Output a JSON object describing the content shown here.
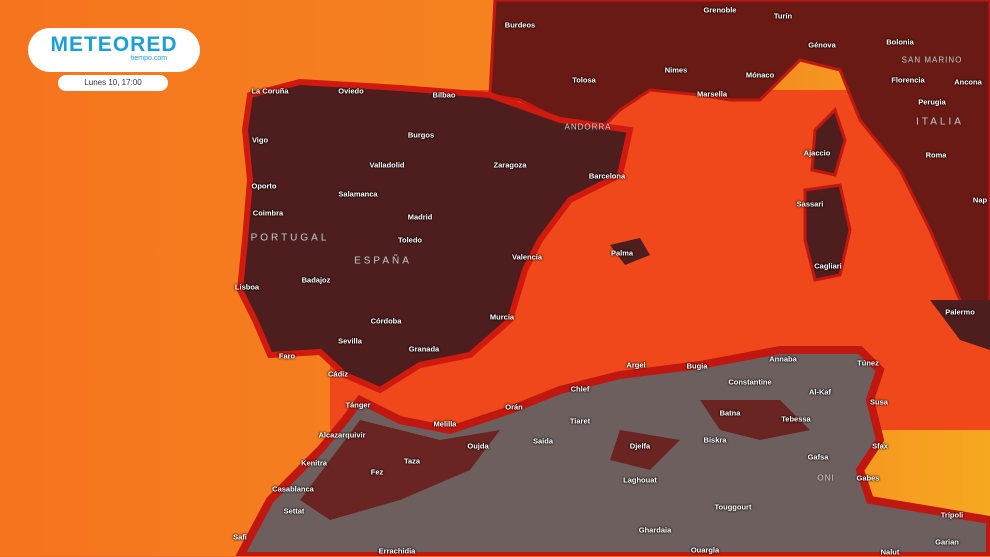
{
  "brand": {
    "name": "METEORED",
    "domain": "tiempo.com"
  },
  "timestamp": "Lunes 10, 17:00",
  "colors": {
    "ocean": "#f26a1c",
    "sea": "#f0461a",
    "land_hot": "#4e1e1e",
    "land_desert": "#6e5f5f",
    "coast_red": "#c01810"
  },
  "countries": [
    {
      "name": "PORTUGAL"
    },
    {
      "name": "ESPAÑA"
    },
    {
      "name": "ITALIA"
    },
    {
      "name": "SAN MARINO"
    },
    {
      "name": "ANDORRA"
    },
    {
      "name": "ONI"
    }
  ],
  "cities": [
    "Burdeos",
    "Grenoble",
    "Turín",
    "Génova",
    "Bolonia",
    "Florencia",
    "Ancona",
    "Perugia",
    "Roma",
    "Nap",
    "La Coruña",
    "Oviedo",
    "Bilbao",
    "Tolosa",
    "Nimes",
    "Mónaco",
    "Marsella",
    "Burgos",
    "Valladolid",
    "Zaragoza",
    "Barcelona",
    "Vigo",
    "Oporto",
    "Salamanca",
    "Madrid",
    "Coimbra",
    "Toledo",
    "Valencia",
    "Palma",
    "Ajaccio",
    "Sassari",
    "Cagliari",
    "Lisboa",
    "Badajoz",
    "Córdoba",
    "Murcia",
    "Sevilla",
    "Granada",
    "Faro",
    "Cádiz",
    "Tánger",
    "Melilla",
    "Orán",
    "Chlef",
    "Tiaret",
    "Saida",
    "Alcazarquivir",
    "Oujda",
    "Kenitra",
    "Fez",
    "Taza",
    "Casablanca",
    "Settat",
    "Safi",
    "Errachidia",
    "Argel",
    "Bugia",
    "Annaba",
    "Constantine",
    "Túnez",
    "Al-Kaf",
    "Batna",
    "Tebessa",
    "Susa",
    "Biskra",
    "Djelfa",
    "Sfax",
    "Gafsa",
    "Laghouat",
    "Gabes",
    "Touggourt",
    "Ghardaia",
    "Ouargla",
    "Trípoli",
    "Garian",
    "Nalut",
    "Palermo"
  ]
}
